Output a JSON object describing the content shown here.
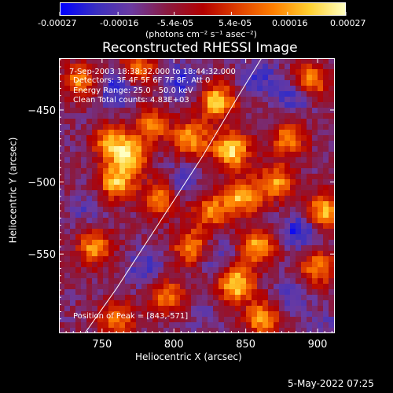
{
  "colorbar": {
    "ticks": [
      "-0.00027",
      "-0.00016",
      "-5.4e-05",
      "5.4e-05",
      "0.00016",
      "0.00027"
    ],
    "range": [
      -0.00027,
      0.00027
    ],
    "unit_label": "(photons cm⁻² s⁻¹ asec⁻²)",
    "colors": [
      "#0000ff",
      "#3a2fc0",
      "#6b3aa0",
      "#8a1a40",
      "#b20000",
      "#e04000",
      "#ff8000",
      "#ffd030",
      "#ffffc0"
    ]
  },
  "chart_data": {
    "type": "heatmap",
    "title": "Reconstructed RHESSI Image",
    "xlabel": "Heliocentric X (arcsec)",
    "ylabel": "Heliocentric Y (arcsec)",
    "xlim": [
      720,
      912
    ],
    "ylim": [
      -605,
      -414
    ],
    "xticks": [
      750,
      800,
      850,
      900
    ],
    "yticks": [
      -450,
      -500,
      -550
    ],
    "annotations": [
      "7-Sep-2003 18:38:32.000 to 18:44:32.000",
      "Detectors: 3F 4F 5F 6F 7F 8F, Att 0",
      "Energy Range: 25.0 - 50.0 keV",
      "Clean     Total counts: 4.83E+03"
    ],
    "peak_label": "Position of Peak = [843,-571]",
    "limb_curve": [
      [
        738,
        -605
      ],
      [
        760,
        -574
      ],
      [
        790,
        -528
      ],
      [
        820,
        -482
      ],
      [
        845,
        -440
      ],
      [
        861,
        -414
      ]
    ],
    "hot_spots": [
      {
        "x": 756,
        "y": -472,
        "v": 0.00018
      },
      {
        "x": 770,
        "y": -482,
        "v": 0.00021
      },
      {
        "x": 785,
        "y": -460,
        "v": 0.00015
      },
      {
        "x": 760,
        "y": -500,
        "v": 0.00022
      },
      {
        "x": 790,
        "y": -512,
        "v": 0.00017
      },
      {
        "x": 812,
        "y": -470,
        "v": 0.00019
      },
      {
        "x": 830,
        "y": -444,
        "v": 0.00024
      },
      {
        "x": 840,
        "y": -478,
        "v": 0.00027
      },
      {
        "x": 848,
        "y": -510,
        "v": 0.00023
      },
      {
        "x": 858,
        "y": -545,
        "v": 0.0002
      },
      {
        "x": 826,
        "y": -520,
        "v": 0.00016
      },
      {
        "x": 880,
        "y": -470,
        "v": 0.00015
      },
      {
        "x": 872,
        "y": -500,
        "v": 0.00018
      },
      {
        "x": 905,
        "y": -520,
        "v": 0.00022
      },
      {
        "x": 900,
        "y": -560,
        "v": 0.00016
      },
      {
        "x": 812,
        "y": -545,
        "v": 0.00017
      },
      {
        "x": 796,
        "y": -580,
        "v": 0.00015
      },
      {
        "x": 843,
        "y": -571,
        "v": 0.00027
      },
      {
        "x": 862,
        "y": -595,
        "v": 0.0002
      },
      {
        "x": 745,
        "y": -545,
        "v": 0.00018
      },
      {
        "x": 735,
        "y": -430,
        "v": 0.00016
      },
      {
        "x": 760,
        "y": -595,
        "v": 0.00015
      },
      {
        "x": 895,
        "y": -430,
        "v": 0.00019
      },
      {
        "x": 775,
        "y": -420,
        "v": 0.00014
      }
    ],
    "cold_spots": [
      {
        "x": 760,
        "y": -435,
        "v": -0.00025
      },
      {
        "x": 805,
        "y": -430,
        "v": -0.00022
      },
      {
        "x": 860,
        "y": -427,
        "v": -0.00021
      },
      {
        "x": 885,
        "y": -440,
        "v": -0.00024
      },
      {
        "x": 805,
        "y": -500,
        "v": -0.00018
      },
      {
        "x": 830,
        "y": -552,
        "v": -0.0002
      },
      {
        "x": 740,
        "y": -520,
        "v": -0.00016
      },
      {
        "x": 888,
        "y": -535,
        "v": -0.00026
      },
      {
        "x": 882,
        "y": -578,
        "v": -0.00018
      },
      {
        "x": 780,
        "y": -560,
        "v": -0.0002
      },
      {
        "x": 905,
        "y": -600,
        "v": -0.00015
      },
      {
        "x": 820,
        "y": -590,
        "v": -0.00014
      }
    ],
    "grid": false
  },
  "footer": {
    "timestamp": "5-May-2022 07:25"
  }
}
